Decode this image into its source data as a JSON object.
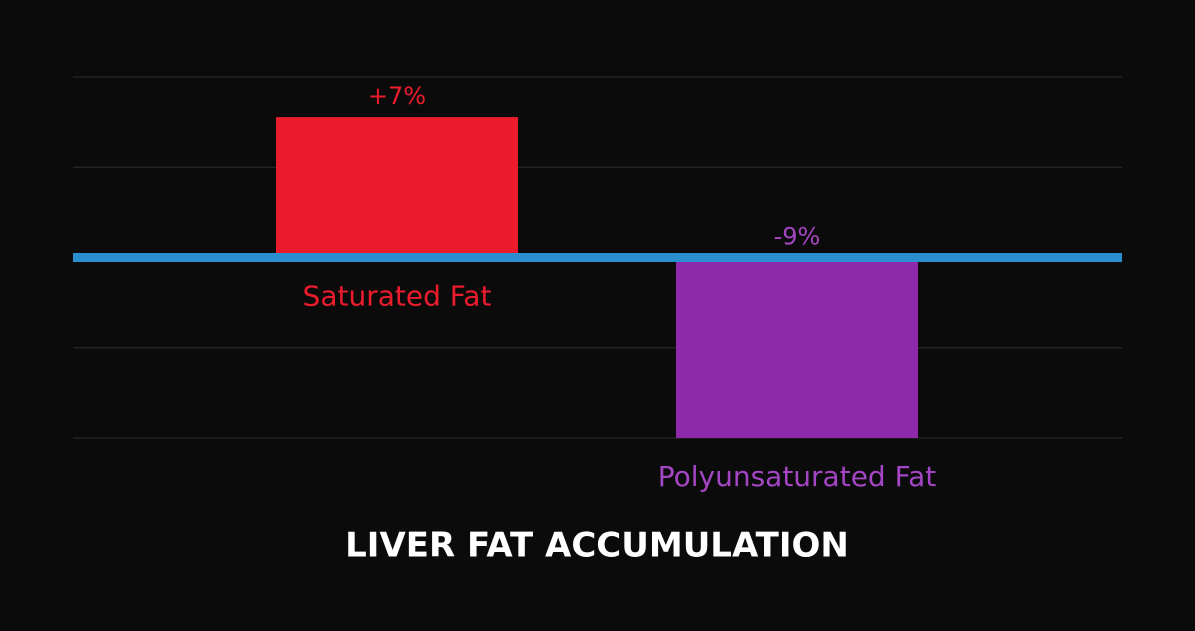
{
  "chart_data": {
    "type": "bar",
    "title": "LIVER FAT ACCUMULATION",
    "categories": [
      "Saturated Fat",
      "Polyunsaturated Fat"
    ],
    "values": [
      7,
      -9
    ],
    "value_labels": [
      "+7%",
      "-9%"
    ],
    "colors": [
      "#ec1c2d",
      "#8e2aa9"
    ],
    "ylim": [
      -9,
      9
    ],
    "yticks": [
      -9,
      -4.5,
      0,
      4.5,
      9
    ],
    "grid": true,
    "zero_line_color": "#2a8fcf"
  }
}
